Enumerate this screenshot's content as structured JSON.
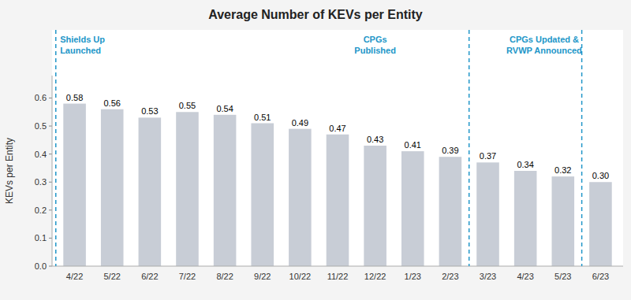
{
  "chart_data": {
    "type": "bar",
    "title": "Average Number of KEVs per Entity",
    "ylabel": "KEVs per Entity",
    "categories": [
      "4/22",
      "5/22",
      "6/22",
      "7/22",
      "8/22",
      "9/22",
      "10/22",
      "11/22",
      "12/22",
      "1/23",
      "2/23",
      "3/23",
      "4/23",
      "5/23",
      "6/23"
    ],
    "values": [
      0.58,
      0.56,
      0.53,
      0.55,
      0.54,
      0.51,
      0.49,
      0.47,
      0.43,
      0.41,
      0.39,
      0.37,
      0.34,
      0.32,
      0.3
    ],
    "value_labels": [
      "0.58",
      "0.56",
      "0.53",
      "0.55",
      "0.54",
      "0.51",
      "0.49",
      "0.47",
      "0.43",
      "0.41",
      "0.39",
      "0.37",
      "0.34",
      "0.32",
      "0.30"
    ],
    "data_labels": true,
    "color": "#c8cdd6",
    "ylim": [
      0,
      0.68
    ],
    "yticks": [
      {
        "value": 0.0,
        "label": "0.0"
      },
      0.1,
      0.2,
      0.3,
      0.4,
      0.5,
      0.6
    ],
    "grid": false,
    "events": {
      "color": "#2196C8",
      "lines": [
        -0.5,
        10.5,
        13.5
      ],
      "annotations": [
        {
          "text": "Shields Up\nLaunched",
          "x": -0.45
        },
        {
          "text": "CPGs\nPublished",
          "x": 8.0
        },
        {
          "text": "CPGs Updated &\nRVWP Announced",
          "x": 12.5
        }
      ]
    }
  }
}
